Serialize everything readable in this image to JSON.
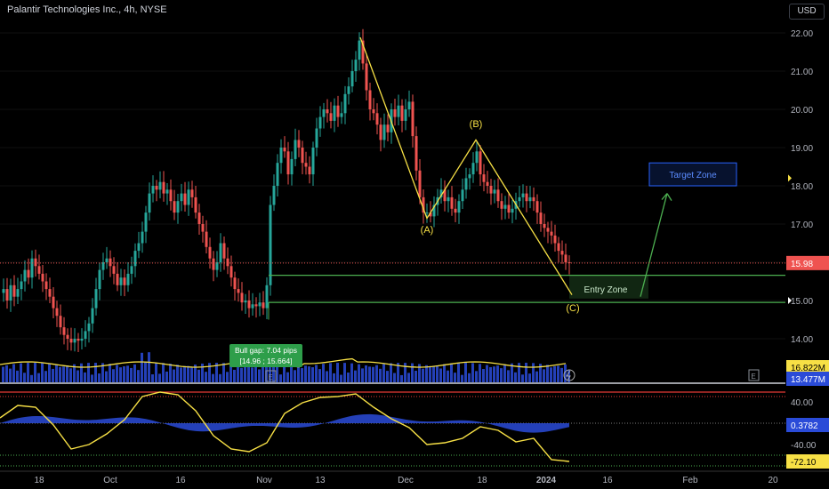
{
  "header": {
    "title": "Palantir Technologies Inc., 4h, NYSE",
    "currency": "USD"
  },
  "chart_data": [
    {
      "type": "candlestick",
      "ylim": [
        13.4,
        22.5
      ],
      "y_ticks": [
        "22.00",
        "21.00",
        "20.00",
        "19.00",
        "18.00",
        "17.00",
        "16.00",
        "15.00",
        "14.00"
      ],
      "x_ticks": [
        "18",
        "Oct",
        "16",
        "Nov",
        "13",
        "Dec",
        "18",
        "2024",
        "16",
        "Feb",
        "20"
      ],
      "colors": {
        "up": "#26a69a",
        "down": "#ef5350",
        "wave": "#f7e045",
        "zone": "#4caf50",
        "target": "#2962ff",
        "volume": "#2a4bd8"
      },
      "price_path": [
        [
          0,
          15.2
        ],
        [
          4,
          15.3
        ],
        [
          8,
          15.0
        ],
        [
          12,
          15.4
        ],
        [
          16,
          15.1
        ],
        [
          20,
          15.3
        ],
        [
          24,
          15.5
        ],
        [
          28,
          15.8
        ],
        [
          32,
          15.6
        ],
        [
          36,
          16.1
        ],
        [
          40,
          15.9
        ],
        [
          44,
          15.7
        ],
        [
          48,
          15.5
        ],
        [
          52,
          15.3
        ],
        [
          56,
          15.1
        ],
        [
          60,
          14.8
        ],
        [
          64,
          14.6
        ],
        [
          68,
          14.3
        ],
        [
          72,
          14.1
        ],
        [
          76,
          14.0
        ],
        [
          80,
          13.9
        ],
        [
          84,
          14.0
        ],
        [
          88,
          13.95
        ],
        [
          92,
          14.0
        ],
        [
          96,
          14.2
        ],
        [
          100,
          14.4
        ],
        [
          104,
          14.8
        ],
        [
          108,
          15.3
        ],
        [
          112,
          15.8
        ],
        [
          116,
          16.0
        ],
        [
          120,
          16.1
        ],
        [
          124,
          15.9
        ],
        [
          128,
          15.7
        ],
        [
          132,
          15.4
        ],
        [
          136,
          15.6
        ],
        [
          140,
          15.4
        ],
        [
          144,
          15.7
        ],
        [
          148,
          15.9
        ],
        [
          152,
          16.3
        ],
        [
          156,
          16.5
        ],
        [
          160,
          16.8
        ],
        [
          164,
          17.3
        ],
        [
          168,
          17.8
        ],
        [
          172,
          18.0
        ],
        [
          176,
          17.9
        ],
        [
          180,
          18.1
        ],
        [
          184,
          17.8
        ],
        [
          188,
          17.9
        ],
        [
          192,
          17.6
        ],
        [
          196,
          17.3
        ],
        [
          200,
          17.6
        ],
        [
          204,
          17.8
        ],
        [
          208,
          17.5
        ],
        [
          212,
          17.9
        ],
        [
          216,
          17.7
        ],
        [
          220,
          17.3
        ],
        [
          224,
          17.0
        ],
        [
          228,
          16.8
        ],
        [
          232,
          16.4
        ],
        [
          236,
          16.1
        ],
        [
          240,
          15.8
        ],
        [
          244,
          16.0
        ],
        [
          248,
          16.5
        ],
        [
          252,
          16.1
        ],
        [
          256,
          15.9
        ],
        [
          260,
          15.6
        ],
        [
          264,
          15.3
        ],
        [
          268,
          15.2
        ],
        [
          272,
          14.95
        ],
        [
          276,
          15.0
        ],
        [
          280,
          14.8
        ],
        [
          284,
          14.9
        ],
        [
          288,
          14.85
        ],
        [
          292,
          14.95
        ],
        [
          296,
          14.8
        ],
        [
          300,
          15.4
        ],
        [
          304,
          17.5
        ],
        [
          308,
          18.0
        ],
        [
          312,
          18.6
        ],
        [
          316,
          19.0
        ],
        [
          320,
          18.9
        ],
        [
          324,
          18.3
        ],
        [
          328,
          18.7
        ],
        [
          332,
          19.2
        ],
        [
          336,
          19.0
        ],
        [
          340,
          18.6
        ],
        [
          344,
          18.5
        ],
        [
          348,
          18.3
        ],
        [
          352,
          19.0
        ],
        [
          356,
          19.5
        ],
        [
          360,
          19.8
        ],
        [
          364,
          20.0
        ],
        [
          368,
          19.9
        ],
        [
          372,
          19.7
        ],
        [
          376,
          20.1
        ],
        [
          380,
          19.8
        ],
        [
          384,
          19.9
        ],
        [
          388,
          20.4
        ],
        [
          392,
          20.6
        ],
        [
          396,
          21.0
        ],
        [
          400,
          21.3
        ],
        [
          404,
          21.8
        ],
        [
          408,
          21.2
        ],
        [
          412,
          20.5
        ],
        [
          416,
          20.0
        ],
        [
          420,
          19.9
        ],
        [
          424,
          19.6
        ],
        [
          428,
          19.2
        ],
        [
          432,
          19.6
        ],
        [
          436,
          19.4
        ],
        [
          440,
          20.0
        ],
        [
          444,
          19.8
        ],
        [
          448,
          20.1
        ],
        [
          452,
          19.7
        ],
        [
          456,
          20.0
        ],
        [
          460,
          20.2
        ],
        [
          464,
          19.3
        ],
        [
          468,
          18.4
        ],
        [
          472,
          17.7
        ],
        [
          476,
          17.3
        ],
        [
          480,
          17.3
        ],
        [
          484,
          17.2
        ],
        [
          488,
          17.5
        ],
        [
          492,
          17.7
        ],
        [
          496,
          17.9
        ],
        [
          500,
          17.6
        ],
        [
          504,
          17.7
        ],
        [
          508,
          17.4
        ],
        [
          512,
          17.3
        ],
        [
          516,
          17.6
        ],
        [
          520,
          17.9
        ],
        [
          524,
          18.2
        ],
        [
          528,
          18.3
        ],
        [
          532,
          18.6
        ],
        [
          536,
          18.9
        ],
        [
          540,
          18.3
        ],
        [
          544,
          18.1
        ],
        [
          548,
          18.0
        ],
        [
          552,
          17.8
        ],
        [
          556,
          17.9
        ],
        [
          560,
          17.6
        ],
        [
          564,
          17.4
        ],
        [
          568,
          17.5
        ],
        [
          572,
          17.3
        ],
        [
          576,
          17.4
        ],
        [
          580,
          17.6
        ],
        [
          584,
          17.7
        ],
        [
          588,
          17.8
        ],
        [
          592,
          17.6
        ],
        [
          596,
          17.7
        ],
        [
          600,
          17.6
        ],
        [
          604,
          17.3
        ],
        [
          608,
          17.0
        ],
        [
          612,
          16.9
        ],
        [
          616,
          16.8
        ],
        [
          620,
          16.7
        ],
        [
          624,
          16.5
        ],
        [
          628,
          16.3
        ],
        [
          632,
          16.2
        ],
        [
          636,
          16.0
        ],
        [
          640,
          15.98
        ]
      ],
      "price_label": "15.98",
      "wave_labels": [
        "(A)",
        "(B)",
        "(C)"
      ],
      "entry_label": "Entry Zone",
      "target_label": "Target Zone",
      "gap_label": [
        "Bull gap: 7.04 pips",
        "[14.96 ; 15.664]"
      ],
      "wave_points": [
        [
          405,
          21.88
        ],
        [
          480,
          17.15
        ],
        [
          535,
          19.2
        ],
        [
          643,
          15.15
        ]
      ],
      "entry_zone": [
        15.05,
        15.66
      ],
      "target_zone": [
        18.0,
        18.6
      ],
      "arrow": [
        [
          720,
          15.1
        ],
        [
          750,
          17.8
        ]
      ],
      "level_line": "15.00",
      "earnings_mark": "E",
      "volume_label": "16.822M",
      "volume_label2": "13.477M"
    },
    {
      "type": "oscillator",
      "ylim": [
        -85,
        65
      ],
      "y_ticks": [
        "40.00",
        "-40.00"
      ],
      "value_label": "0.3782",
      "osc_label": "-72.10",
      "upper_band": 50,
      "lower_band": -60
    }
  ]
}
